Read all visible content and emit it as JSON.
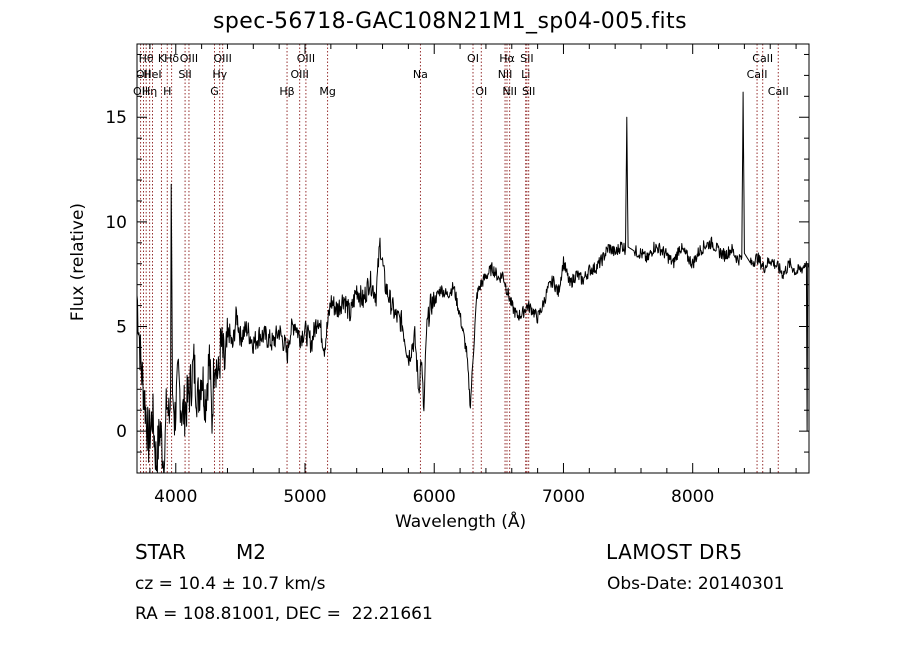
{
  "chart_data": {
    "type": "line",
    "title": "spec-56718-GAC108N21M1_sp04-005.fits",
    "xlabel": "Wavelength (Å)",
    "ylabel": "Flux (relative)",
    "xlim": [
      3700,
      8900
    ],
    "ylim": [
      -2,
      18.5
    ],
    "x_ticks": [
      4000,
      5000,
      6000,
      7000,
      8000
    ],
    "y_ticks": [
      0,
      5,
      10,
      15
    ],
    "grid": false,
    "line_color": "#000000",
    "series": [
      {
        "x": [
          3700,
          3730,
          3760,
          3790,
          3820,
          3850,
          3880,
          3910,
          3930,
          3950,
          3960,
          3965,
          3975,
          3990,
          4020,
          4050,
          4080,
          4110,
          4140,
          4170,
          4200,
          4230,
          4260,
          4280,
          4300,
          4330,
          4350,
          4380,
          4410,
          4440,
          4470,
          4500,
          4550,
          4600,
          4650,
          4700,
          4750,
          4800,
          4850,
          4861,
          4880,
          4920,
          4960,
          5000,
          5050,
          5100,
          5150,
          5200,
          5250,
          5300,
          5350,
          5400,
          5450,
          5500,
          5550,
          5580,
          5620,
          5660,
          5700,
          5750,
          5800,
          5850,
          5880,
          5900,
          5920,
          5940,
          5970,
          6000,
          6050,
          6100,
          6150,
          6200,
          6250,
          6280,
          6300,
          6330,
          6360,
          6400,
          6450,
          6500,
          6530,
          6560,
          6600,
          6640,
          6680,
          6720,
          6760,
          6800,
          6840,
          6880,
          6920,
          6960,
          7000,
          7050,
          7100,
          7150,
          7200,
          7250,
          7300,
          7350,
          7400,
          7450,
          7480,
          7490,
          7500,
          7550,
          7600,
          7650,
          7700,
          7750,
          7800,
          7850,
          7900,
          7950,
          8000,
          8050,
          8100,
          8150,
          8200,
          8250,
          8300,
          8350,
          8380,
          8390,
          8400,
          8450,
          8500,
          8550,
          8600,
          8650,
          8700,
          8750,
          8800,
          8850,
          8880,
          8885,
          8890,
          8900
        ],
        "y": [
          6.5,
          3.2,
          1.5,
          -0.5,
          0.8,
          -1.5,
          0.2,
          -1.8,
          1.5,
          0.5,
          2.2,
          11.8,
          1.8,
          0.5,
          2.5,
          0.8,
          1.2,
          2.0,
          3.2,
          1.5,
          2.8,
          1.5,
          3.5,
          0.5,
          3.8,
          2.5,
          4.2,
          3.0,
          4.8,
          4.0,
          5.6,
          4.5,
          4.9,
          4.2,
          4.6,
          4.5,
          4.2,
          4.8,
          4.0,
          3.5,
          4.6,
          5.2,
          4.5,
          4.8,
          4.2,
          5.5,
          4.0,
          6.2,
          5.8,
          6.4,
          5.5,
          6.8,
          6.2,
          7.2,
          6.5,
          9.0,
          7.0,
          6.2,
          5.5,
          5.2,
          3.5,
          4.5,
          2.0,
          3.5,
          0.8,
          4.8,
          6.0,
          6.2,
          6.8,
          6.5,
          6.9,
          5.5,
          3.8,
          1.2,
          3.5,
          6.5,
          7.0,
          7.4,
          7.8,
          7.3,
          7.5,
          6.8,
          6.0,
          5.5,
          5.6,
          6.0,
          5.8,
          5.4,
          6.0,
          6.8,
          7.2,
          6.6,
          8.1,
          7.0,
          7.5,
          7.2,
          7.7,
          7.8,
          8.2,
          8.8,
          8.5,
          8.9,
          8.7,
          15.0,
          8.8,
          8.6,
          8.5,
          8.2,
          8.8,
          8.7,
          8.4,
          8.0,
          8.8,
          8.4,
          8.0,
          8.6,
          8.9,
          9.0,
          8.6,
          8.4,
          8.7,
          8.2,
          8.3,
          16.2,
          8.5,
          8.0,
          8.3,
          7.8,
          8.2,
          7.9,
          7.5,
          8.0,
          7.6,
          7.8,
          8.1,
          0.0,
          8.0,
          7.8
        ]
      }
    ],
    "lines": [
      {
        "w": 3728,
        "label": "OII",
        "row": 3
      },
      {
        "w": 3750,
        "label": "OII",
        "row": 2
      },
      {
        "w": 3771,
        "label": "Hθ",
        "row": 1
      },
      {
        "w": 3798,
        "label": "Hη",
        "row": 3
      },
      {
        "w": 3820,
        "label": "HeI",
        "row": 2
      },
      {
        "w": 3889,
        "label": "K",
        "row": 1
      },
      {
        "w": 3934,
        "label": "H",
        "row": 3
      },
      {
        "w": 3968,
        "label": "Hδ",
        "row": 1
      },
      {
        "w": 4072,
        "label": "SII",
        "row": 2
      },
      {
        "w": 4102,
        "label": "OIII",
        "row": 1
      },
      {
        "w": 4300,
        "label": "G",
        "row": 3
      },
      {
        "w": 4340,
        "label": "Hγ",
        "row": 2
      },
      {
        "w": 4363,
        "label": "OIII",
        "row": 1
      },
      {
        "w": 4861,
        "label": "Hβ",
        "row": 3
      },
      {
        "w": 4959,
        "label": "OIII",
        "row": 2
      },
      {
        "w": 5007,
        "label": "OIII",
        "row": 1
      },
      {
        "w": 5175,
        "label": "Mg",
        "row": 3
      },
      {
        "w": 5893,
        "label": "Na",
        "row": 2
      },
      {
        "w": 6300,
        "label": "OI",
        "row": 1
      },
      {
        "w": 6364,
        "label": "OI",
        "row": 3
      },
      {
        "w": 6548,
        "label": "NII",
        "row": 2
      },
      {
        "w": 6563,
        "label": "Hα",
        "row": 1
      },
      {
        "w": 6584,
        "label": "NII",
        "row": 3
      },
      {
        "w": 6708,
        "label": "Li",
        "row": 2
      },
      {
        "w": 6717,
        "label": "SII",
        "row": 1
      },
      {
        "w": 6731,
        "label": "SII",
        "row": 3
      },
      {
        "w": 8498,
        "label": "CaII",
        "row": 2
      },
      {
        "w": 8542,
        "label": "CaII",
        "row": 1
      },
      {
        "w": 8662,
        "label": "CaII",
        "row": 3
      }
    ]
  },
  "info": {
    "object_class": "STAR",
    "subclass": "M2",
    "survey": "LAMOST DR5",
    "cz": "cz = 10.4 ± 10.7 km/s",
    "obs_date": "Obs-Date: 20140301",
    "coords": "RA = 108.81001, DEC =  22.21661"
  }
}
